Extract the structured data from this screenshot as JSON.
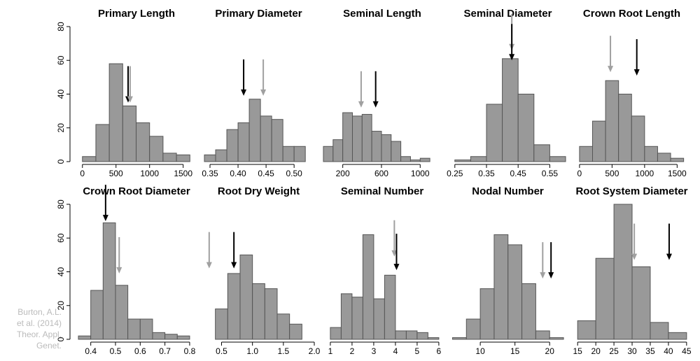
{
  "chart_data": [
    {
      "type": "histogram",
      "title": "Primary Length",
      "bins": [
        0,
        200,
        400,
        600,
        800,
        1000,
        1200,
        1400,
        1600
      ],
      "counts": [
        3,
        22,
        58,
        33,
        23,
        15,
        5,
        4
      ],
      "xlim": [
        -60,
        1670
      ],
      "xticks": [
        0,
        500,
        1000,
        1500
      ],
      "ylim": [
        0,
        80
      ],
      "yticks": [
        0,
        20,
        40,
        60,
        80
      ],
      "color": "#999999",
      "arrows": [
        {
          "color": "#000000",
          "x": 680,
          "y": 35
        },
        {
          "color": "#a0a0a0",
          "x": 710,
          "y": 35
        }
      ]
    },
    {
      "type": "histogram",
      "title": "Primary Diameter",
      "bins": [
        0.34,
        0.36,
        0.38,
        0.4,
        0.42,
        0.44,
        0.46,
        0.48,
        0.5,
        0.52
      ],
      "counts": [
        4,
        7,
        19,
        23,
        37,
        27,
        25,
        9,
        9
      ],
      "xlim": [
        0.3375,
        0.536
      ],
      "xticks": [
        0.35,
        {
          "value": 0.4,
          "label": "0.40"
        },
        0.45,
        {
          "value": 0.5,
          "label": "0.50"
        }
      ],
      "ylim": [
        0,
        80
      ],
      "color": "#999999",
      "arrows": [
        {
          "color": "#000000",
          "x": 0.41,
          "y": 39
        },
        {
          "color": "#a0a0a0",
          "x": 0.445,
          "y": 39
        }
      ]
    },
    {
      "type": "histogram",
      "title": "Seminal Length",
      "bins": [
        0,
        100,
        200,
        300,
        400,
        500,
        600,
        700,
        800,
        900,
        1000,
        1100
      ],
      "counts": [
        9,
        13,
        29,
        27,
        28,
        18,
        16,
        12,
        3,
        1,
        2
      ],
      "xlim": [
        0,
        1215
      ],
      "xticks": [
        200,
        600,
        1000
      ],
      "ylim": [
        0,
        80
      ],
      "color": "#999999",
      "arrows": [
        {
          "color": "#a0a0a0",
          "x": 390,
          "y": 32
        },
        {
          "color": "#000000",
          "x": 540,
          "y": 32
        }
      ]
    },
    {
      "type": "histogram",
      "title": "Seminal Diameter",
      "bins": [
        0.25,
        0.3,
        0.35,
        0.4,
        0.45,
        0.5,
        0.55,
        0.6
      ],
      "counts": [
        1,
        3,
        34,
        61,
        40,
        10,
        3
      ],
      "xlim": [
        0.235,
        0.6
      ],
      "xticks": [
        0.25,
        0.35,
        0.45,
        0.55
      ],
      "ylim": [
        0,
        80
      ],
      "color": "#999999",
      "arrows": [
        {
          "color": "#a0a0a0",
          "x": 0.43,
          "y": 66
        },
        {
          "color": "#000000",
          "x": 0.43,
          "y": 60
        }
      ]
    },
    {
      "type": "histogram",
      "title": "Crown Root Length",
      "bins": [
        0,
        200,
        400,
        600,
        800,
        1000,
        1200,
        1400,
        1600
      ],
      "counts": [
        9,
        24,
        48,
        40,
        27,
        9,
        5,
        2
      ],
      "xlim": [
        -85,
        1690
      ],
      "xticks": [
        0,
        500,
        1000,
        1500
      ],
      "ylim": [
        0,
        80
      ],
      "color": "#999999",
      "arrows": [
        {
          "color": "#a0a0a0",
          "x": 475,
          "y": 53
        },
        {
          "color": "#000000",
          "x": 880,
          "y": 51
        }
      ]
    },
    {
      "type": "histogram",
      "title": "Crown Root Diameter",
      "bins": [
        0.35,
        0.4,
        0.45,
        0.5,
        0.55,
        0.6,
        0.65,
        0.7,
        0.75,
        0.8
      ],
      "counts": [
        2,
        29,
        69,
        32,
        12,
        12,
        4,
        3,
        2
      ],
      "xlim": [
        0.35,
        0.82
      ],
      "xticks": [
        0.4,
        0.5,
        0.6,
        0.7,
        0.8
      ],
      "ylim": [
        0,
        80
      ],
      "yticks": [
        0,
        20,
        40,
        60,
        80
      ],
      "color": "#999999",
      "arrows": [
        {
          "color": "#000000",
          "x": 0.46,
          "y": 70
        },
        {
          "color": "#a0a0a0",
          "x": 0.515,
          "y": 39
        }
      ]
    },
    {
      "type": "histogram",
      "title": "Root Dry Weight",
      "bins": [
        0.4,
        0.6,
        0.8,
        1.0,
        1.2,
        1.4,
        1.6,
        1.8
      ],
      "counts": [
        18,
        39,
        50,
        33,
        30,
        15,
        9
      ],
      "xlim": [
        0.2,
        2.0
      ],
      "xticks": [
        0.5,
        {
          "value": 1,
          "label": "1.0"
        },
        1.5,
        {
          "value": 2,
          "label": "2.0"
        }
      ],
      "ylim": [
        0,
        80
      ],
      "color": "#999999",
      "arrows": [
        {
          "color": "#a0a0a0",
          "x": 0.3,
          "y": 42
        },
        {
          "color": "#000000",
          "x": 0.7,
          "y": 42
        }
      ]
    },
    {
      "type": "histogram",
      "title": "Seminal Number",
      "bins": [
        1,
        1.5,
        2,
        2.5,
        3,
        3.5,
        4,
        4.5,
        5,
        5.5,
        6
      ],
      "counts": [
        7,
        27,
        25,
        62,
        24,
        38,
        5,
        5,
        4,
        1
      ],
      "xlim": [
        0.68,
        6.1
      ],
      "xticks": [
        1,
        2,
        3,
        4,
        5,
        6
      ],
      "ylim": [
        0,
        80
      ],
      "color": "#999999",
      "arrows": [
        {
          "color": "#a0a0a0",
          "x": 3.95,
          "y": 49
        },
        {
          "color": "#000000",
          "x": 4.05,
          "y": 41
        }
      ]
    },
    {
      "type": "histogram",
      "title": "Nodal Number",
      "bins": [
        6,
        8,
        10,
        12,
        14,
        16,
        18,
        20,
        22
      ],
      "counts": [
        1,
        12,
        30,
        62,
        56,
        33,
        5,
        1
      ],
      "xlim": [
        5.65,
        22.3
      ],
      "xticks": [
        10,
        15,
        20
      ],
      "ylim": [
        0,
        80
      ],
      "color": "#999999",
      "arrows": [
        {
          "color": "#a0a0a0",
          "x": 19,
          "y": 36
        },
        {
          "color": "#000000",
          "x": 20.2,
          "y": 36
        }
      ]
    },
    {
      "type": "histogram",
      "title": "Root System Diameter",
      "bins": [
        15,
        20,
        25,
        30,
        35,
        40,
        45
      ],
      "counts": [
        11,
        48,
        80,
        43,
        10,
        4
      ],
      "xlim": [
        14,
        45.8
      ],
      "xticks": [
        15,
        20,
        25,
        30,
        35,
        40,
        45
      ],
      "ylim": [
        0,
        80
      ],
      "color": "#999999",
      "arrows": [
        {
          "color": "#a0a0a0",
          "x": 30.6,
          "y": 47
        },
        {
          "color": "#000000",
          "x": 40.2,
          "y": 47
        }
      ]
    }
  ],
  "caption": [
    "Burton, A.L.",
    "et al. (2014)",
    "Theor. Appl.",
    "Genet."
  ]
}
